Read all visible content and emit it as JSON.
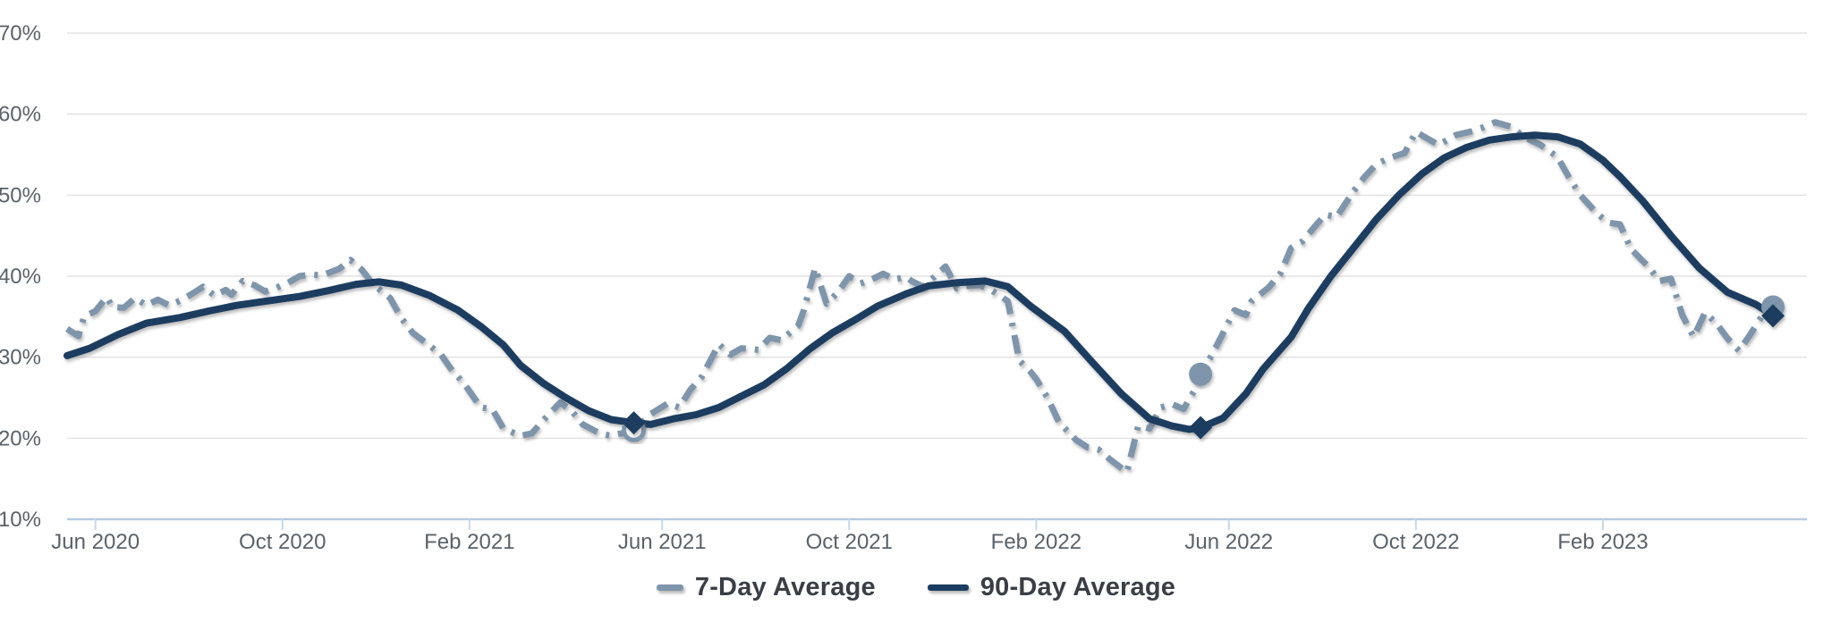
{
  "chart_data": {
    "type": "line",
    "title": "",
    "grid": true,
    "colors": {
      "series_7day": "#7E95AB",
      "series_90day": "#1B3C61",
      "gridline": "#e3e3e3",
      "axis_line": "#b7cbe0",
      "axis_tick": "#c6d7e9",
      "tick_label": "#5b6269",
      "legend_text": "#3a3e45",
      "background": "#ffffff"
    },
    "x_axis": {
      "min": 2020.37,
      "max": 2023.44,
      "ticks": [
        {
          "t": 2020.42,
          "label": "Jun 2020"
        },
        {
          "t": 2020.75,
          "label": "Oct 2020"
        },
        {
          "t": 2021.08,
          "label": "Feb 2021"
        },
        {
          "t": 2021.42,
          "label": "Jun 2021"
        },
        {
          "t": 2021.75,
          "label": "Oct 2021"
        },
        {
          "t": 2022.08,
          "label": "Feb 2022"
        },
        {
          "t": 2022.42,
          "label": "Jun 2022"
        },
        {
          "t": 2022.75,
          "label": "Oct 2022"
        },
        {
          "t": 2023.08,
          "label": "Feb 2023"
        }
      ]
    },
    "y_axis": {
      "min": 10,
      "max": 70,
      "step": 10,
      "unit": "%",
      "tick_labels": [
        "10%",
        "20%",
        "30%",
        "40%",
        "50%",
        "60%",
        "70%"
      ]
    },
    "legend": {
      "position": "bottom-center"
    },
    "series": [
      {
        "name": "7-Day Average",
        "color": "#7E95AB",
        "style": "dash-dot",
        "points": [
          [
            2020.37,
            33.5
          ],
          [
            2020.39,
            32.6
          ],
          [
            2020.4,
            35.0
          ],
          [
            2020.42,
            35.7
          ],
          [
            2020.44,
            37.4
          ],
          [
            2020.45,
            36.2
          ],
          [
            2020.47,
            36.1
          ],
          [
            2020.49,
            37.3
          ],
          [
            2020.51,
            36.4
          ],
          [
            2020.53,
            37.1
          ],
          [
            2020.55,
            36.4
          ],
          [
            2020.57,
            37.0
          ],
          [
            2020.59,
            37.8
          ],
          [
            2020.61,
            38.7
          ],
          [
            2020.63,
            37.6
          ],
          [
            2020.65,
            38.3
          ],
          [
            2020.66,
            37.7
          ],
          [
            2020.68,
            39.4
          ],
          [
            2020.7,
            38.9
          ],
          [
            2020.72,
            38.1
          ],
          [
            2020.74,
            38.6
          ],
          [
            2020.76,
            39.2
          ],
          [
            2020.78,
            40.0
          ],
          [
            2020.8,
            40.2
          ],
          [
            2020.82,
            40.1
          ],
          [
            2020.85,
            40.9
          ],
          [
            2020.87,
            42.0
          ],
          [
            2020.89,
            40.8
          ],
          [
            2020.91,
            39.0
          ],
          [
            2020.94,
            37.3
          ],
          [
            2020.96,
            34.8
          ],
          [
            2020.98,
            33.0
          ],
          [
            2021.01,
            31.4
          ],
          [
            2021.03,
            30.3
          ],
          [
            2021.05,
            28.3
          ],
          [
            2021.07,
            26.8
          ],
          [
            2021.1,
            23.8
          ],
          [
            2021.12,
            23.6
          ],
          [
            2021.14,
            21.2
          ],
          [
            2021.17,
            20.3
          ],
          [
            2021.19,
            20.6
          ],
          [
            2021.21,
            22.2
          ],
          [
            2021.24,
            24.4
          ],
          [
            2021.26,
            23.4
          ],
          [
            2021.28,
            21.7
          ],
          [
            2021.31,
            20.6
          ],
          [
            2021.33,
            20.3
          ],
          [
            2021.36,
            20.8
          ],
          [
            2021.37,
            21.0
          ],
          [
            2021.4,
            23.0
          ],
          [
            2021.43,
            24.3
          ],
          [
            2021.45,
            23.8
          ],
          [
            2021.47,
            26.0
          ],
          [
            2021.49,
            27.6
          ],
          [
            2021.52,
            31.6
          ],
          [
            2021.54,
            30.3
          ],
          [
            2021.56,
            31.1
          ],
          [
            2021.59,
            30.9
          ],
          [
            2021.61,
            32.4
          ],
          [
            2021.63,
            32.1
          ],
          [
            2021.66,
            33.9
          ],
          [
            2021.67,
            35.8
          ],
          [
            2021.69,
            41.0
          ],
          [
            2021.71,
            36.6
          ],
          [
            2021.73,
            38.0
          ],
          [
            2021.75,
            40.0
          ],
          [
            2021.77,
            39.1
          ],
          [
            2021.79,
            39.6
          ],
          [
            2021.81,
            40.3
          ],
          [
            2021.83,
            39.6
          ],
          [
            2021.85,
            39.9
          ],
          [
            2021.86,
            39.4
          ],
          [
            2021.88,
            38.7
          ],
          [
            2021.9,
            39.9
          ],
          [
            2021.92,
            41.2
          ],
          [
            2021.94,
            38.5
          ],
          [
            2021.96,
            38.8
          ],
          [
            2021.98,
            38.9
          ],
          [
            2022.0,
            38.3
          ],
          [
            2022.02,
            37.4
          ],
          [
            2022.03,
            36.9
          ],
          [
            2022.05,
            29.6
          ],
          [
            2022.07,
            28.2
          ],
          [
            2022.08,
            27.3
          ],
          [
            2022.1,
            25.0
          ],
          [
            2022.12,
            22.0
          ],
          [
            2022.15,
            19.8
          ],
          [
            2022.17,
            18.9
          ],
          [
            2022.19,
            18.6
          ],
          [
            2022.21,
            17.4
          ],
          [
            2022.24,
            15.8
          ],
          [
            2022.26,
            21.5
          ],
          [
            2022.28,
            21.2
          ],
          [
            2022.3,
            23.8
          ],
          [
            2022.32,
            24.2
          ],
          [
            2022.34,
            23.6
          ],
          [
            2022.36,
            26.0
          ],
          [
            2022.37,
            27.9
          ],
          [
            2022.39,
            30.3
          ],
          [
            2022.41,
            33.0
          ],
          [
            2022.43,
            35.8
          ],
          [
            2022.45,
            35.2
          ],
          [
            2022.46,
            36.9
          ],
          [
            2022.49,
            38.6
          ],
          [
            2022.51,
            40.2
          ],
          [
            2022.53,
            43.5
          ],
          [
            2022.55,
            44.3
          ],
          [
            2022.57,
            46.0
          ],
          [
            2022.59,
            47.6
          ],
          [
            2022.61,
            47.3
          ],
          [
            2022.64,
            50.5
          ],
          [
            2022.66,
            52.3
          ],
          [
            2022.68,
            53.8
          ],
          [
            2022.7,
            54.5
          ],
          [
            2022.73,
            55.2
          ],
          [
            2022.75,
            57.8
          ],
          [
            2022.77,
            57.0
          ],
          [
            2022.79,
            56.2
          ],
          [
            2022.82,
            57.4
          ],
          [
            2022.85,
            57.9
          ],
          [
            2022.87,
            58.4
          ],
          [
            2022.89,
            59.0
          ],
          [
            2022.92,
            58.4
          ],
          [
            2022.94,
            57.2
          ],
          [
            2022.97,
            56.2
          ],
          [
            2023.0,
            54.7
          ],
          [
            2023.02,
            52.2
          ],
          [
            2023.04,
            50.0
          ],
          [
            2023.07,
            47.7
          ],
          [
            2023.09,
            46.6
          ],
          [
            2023.11,
            46.4
          ],
          [
            2023.13,
            43.3
          ],
          [
            2023.16,
            41.2
          ],
          [
            2023.18,
            39.4
          ],
          [
            2023.2,
            39.7
          ],
          [
            2023.22,
            35.2
          ],
          [
            2023.24,
            32.5
          ],
          [
            2023.26,
            35.5
          ],
          [
            2023.28,
            34.2
          ],
          [
            2023.3,
            32.3
          ],
          [
            2023.32,
            30.8
          ],
          [
            2023.34,
            32.8
          ],
          [
            2023.36,
            35.0
          ],
          [
            2023.38,
            36.2
          ]
        ]
      },
      {
        "name": "90-Day Average",
        "color": "#1B3C61",
        "style": "solid",
        "points": [
          [
            2020.37,
            30.2
          ],
          [
            2020.41,
            31.1
          ],
          [
            2020.46,
            32.8
          ],
          [
            2020.51,
            34.2
          ],
          [
            2020.57,
            34.9
          ],
          [
            2020.62,
            35.7
          ],
          [
            2020.67,
            36.4
          ],
          [
            2020.72,
            36.9
          ],
          [
            2020.78,
            37.5
          ],
          [
            2020.83,
            38.2
          ],
          [
            2020.88,
            39.0
          ],
          [
            2020.92,
            39.3
          ],
          [
            2020.96,
            38.9
          ],
          [
            2021.01,
            37.6
          ],
          [
            2021.06,
            35.8
          ],
          [
            2021.1,
            33.8
          ],
          [
            2021.14,
            31.5
          ],
          [
            2021.17,
            29.0
          ],
          [
            2021.21,
            26.8
          ],
          [
            2021.25,
            25.0
          ],
          [
            2021.29,
            23.4
          ],
          [
            2021.33,
            22.3
          ],
          [
            2021.37,
            21.9
          ],
          [
            2021.4,
            21.7
          ],
          [
            2021.44,
            22.4
          ],
          [
            2021.48,
            22.9
          ],
          [
            2021.52,
            23.8
          ],
          [
            2021.56,
            25.2
          ],
          [
            2021.6,
            26.6
          ],
          [
            2021.64,
            28.6
          ],
          [
            2021.68,
            31.0
          ],
          [
            2021.72,
            33.0
          ],
          [
            2021.76,
            34.6
          ],
          [
            2021.8,
            36.3
          ],
          [
            2021.85,
            37.8
          ],
          [
            2021.89,
            38.8
          ],
          [
            2021.94,
            39.2
          ],
          [
            2021.99,
            39.4
          ],
          [
            2022.03,
            38.7
          ],
          [
            2022.07,
            36.3
          ],
          [
            2022.13,
            33.2
          ],
          [
            2022.18,
            29.3
          ],
          [
            2022.23,
            25.5
          ],
          [
            2022.28,
            22.4
          ],
          [
            2022.32,
            21.5
          ],
          [
            2022.35,
            21.1
          ],
          [
            2022.37,
            21.3
          ],
          [
            2022.41,
            22.5
          ],
          [
            2022.45,
            25.5
          ],
          [
            2022.48,
            28.5
          ],
          [
            2022.53,
            32.5
          ],
          [
            2022.56,
            36.0
          ],
          [
            2022.6,
            40.0
          ],
          [
            2022.64,
            43.5
          ],
          [
            2022.68,
            47.0
          ],
          [
            2022.72,
            50.0
          ],
          [
            2022.76,
            52.6
          ],
          [
            2022.8,
            54.6
          ],
          [
            2022.84,
            55.9
          ],
          [
            2022.88,
            56.8
          ],
          [
            2022.92,
            57.2
          ],
          [
            2022.96,
            57.4
          ],
          [
            2023.0,
            57.2
          ],
          [
            2023.04,
            56.3
          ],
          [
            2023.08,
            54.3
          ],
          [
            2023.11,
            52.3
          ],
          [
            2023.15,
            49.3
          ],
          [
            2023.2,
            45.0
          ],
          [
            2023.25,
            41.0
          ],
          [
            2023.3,
            38.0
          ],
          [
            2023.35,
            36.5
          ],
          [
            2023.37,
            35.6
          ],
          [
            2023.38,
            35.1
          ]
        ]
      }
    ],
    "markers": [
      {
        "series": "7-Day Average",
        "t": 2021.37,
        "value": 21.0,
        "shape": "ring"
      },
      {
        "series": "90-Day Average",
        "t": 2021.37,
        "value": 21.9,
        "shape": "diamond"
      },
      {
        "series": "7-Day Average",
        "t": 2022.37,
        "value": 27.9,
        "shape": "circle"
      },
      {
        "series": "90-Day Average",
        "t": 2022.37,
        "value": 21.3,
        "shape": "diamond"
      },
      {
        "series": "7-Day Average",
        "t": 2023.38,
        "value": 36.2,
        "shape": "circle"
      },
      {
        "series": "90-Day Average",
        "t": 2023.38,
        "value": 35.1,
        "shape": "diamond"
      }
    ]
  }
}
